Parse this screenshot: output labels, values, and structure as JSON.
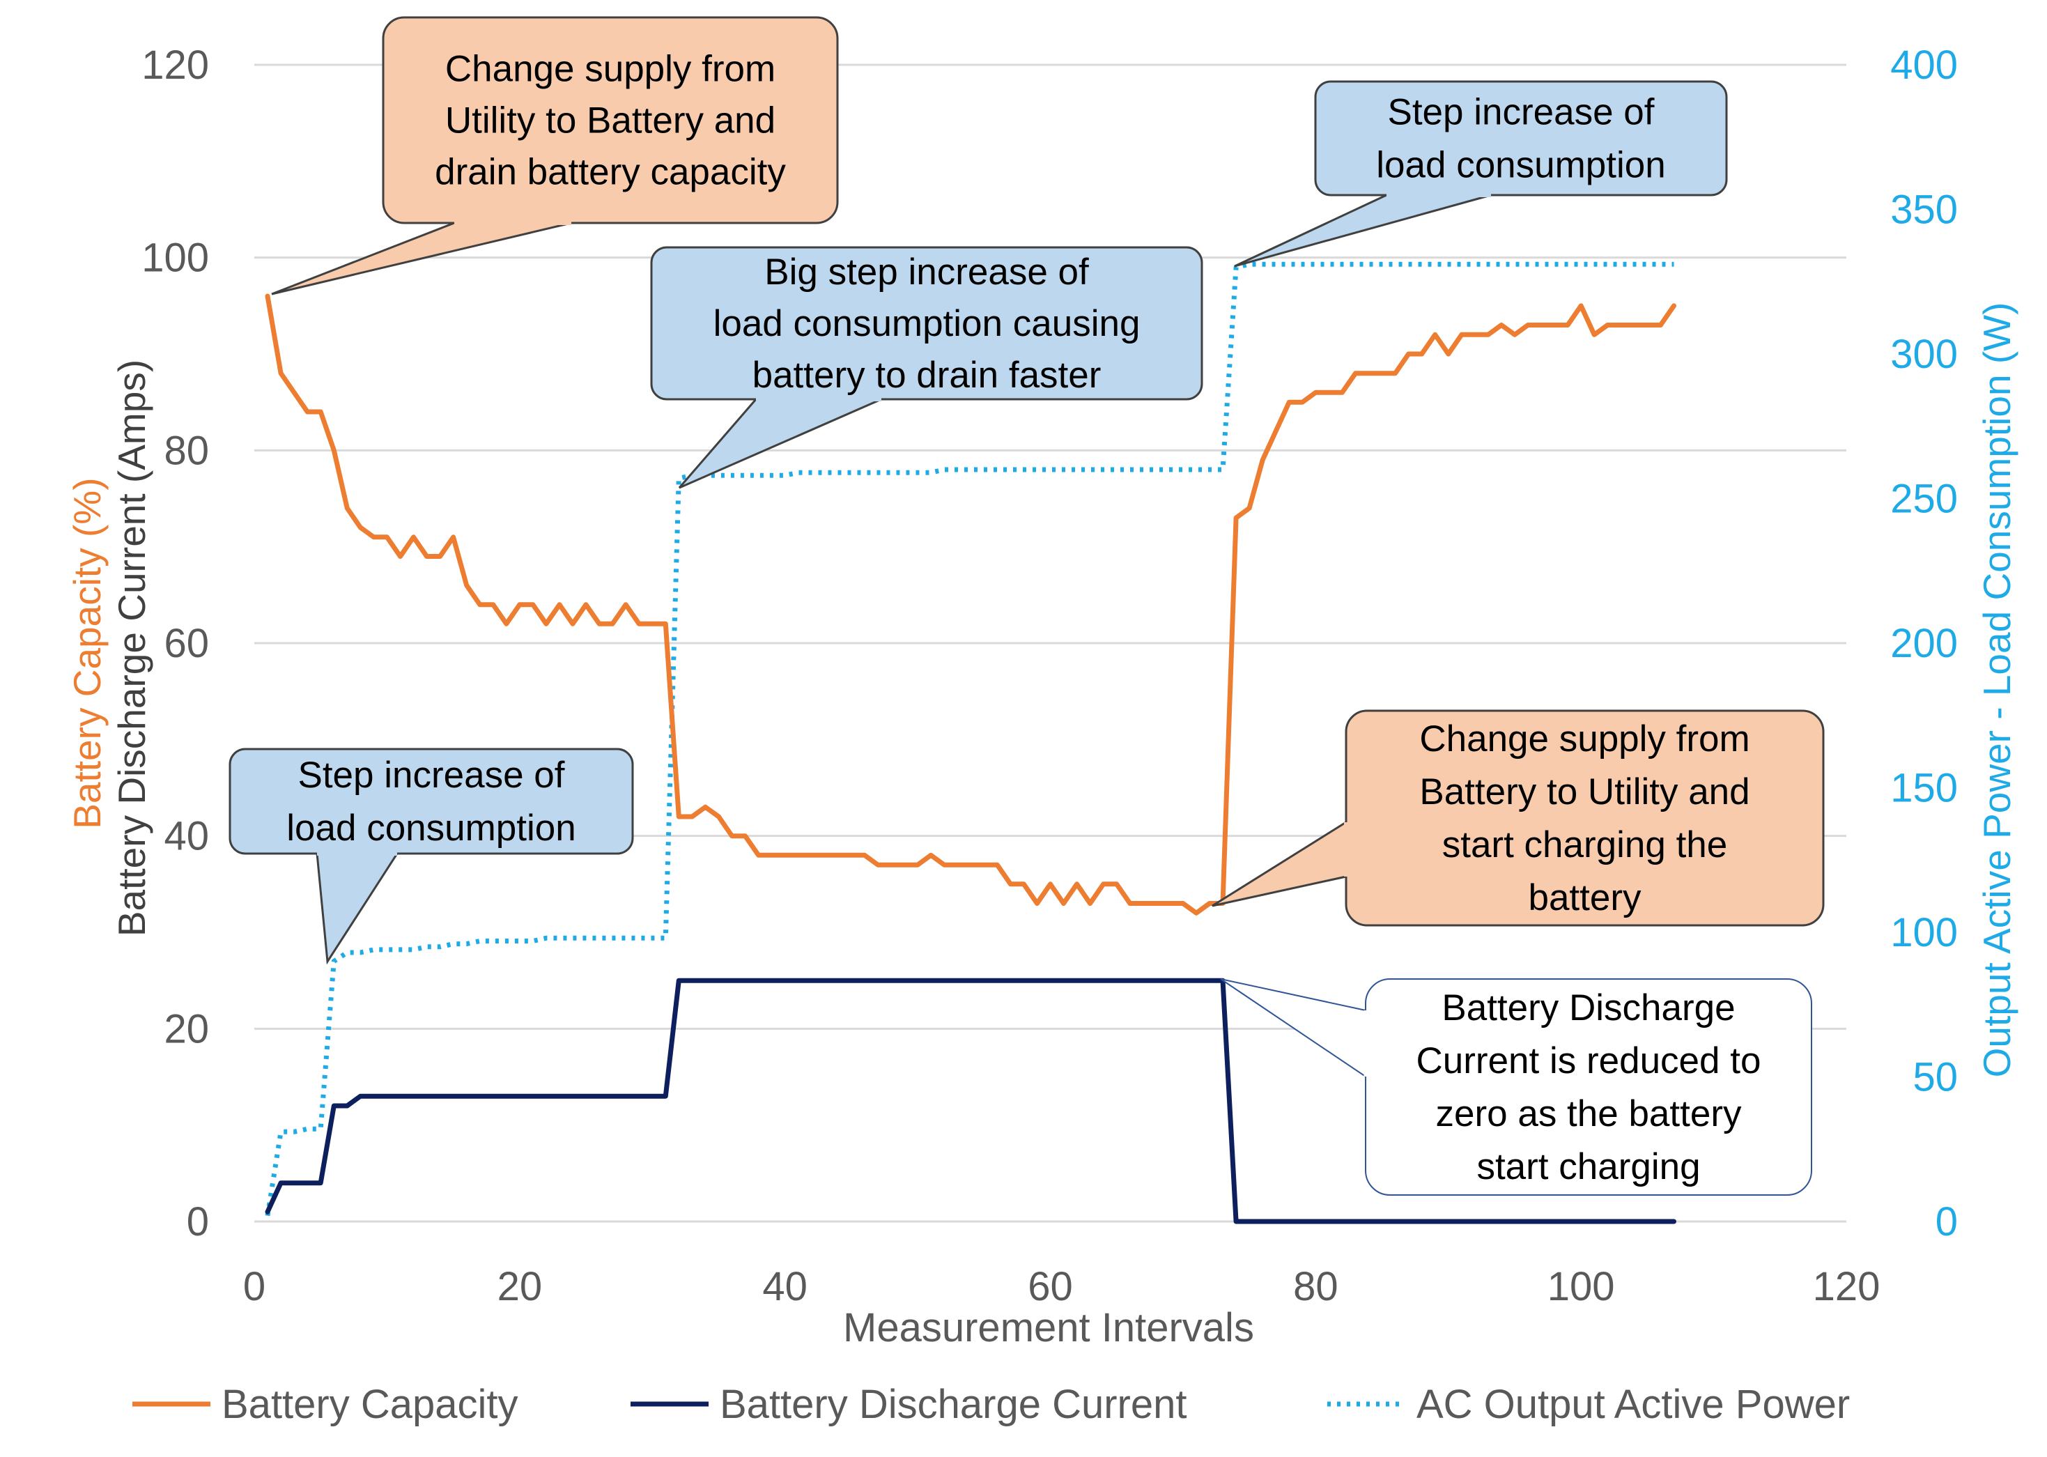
{
  "chart_data": {
    "type": "line",
    "xlabel": "Measurement Intervals",
    "ylabel_left_parts": [
      "Battery Capacity (%)",
      "Battery Discharge Current (Amps)"
    ],
    "ylabel_right": "Output Active Power - Load Consumption (W)",
    "xlim": [
      0,
      120
    ],
    "ylim_left": [
      0,
      120
    ],
    "ylim_right": [
      0,
      400
    ],
    "xticks": [
      "0",
      "20",
      "40",
      "60",
      "80",
      "100",
      "120"
    ],
    "yticks_left": [
      "0",
      "20",
      "40",
      "60",
      "80",
      "100",
      "120"
    ],
    "yticks_right": [
      "0",
      "50",
      "100",
      "150",
      "200",
      "250",
      "300",
      "350",
      "400"
    ],
    "grid": true,
    "legend_position": "bottom",
    "colors": {
      "capacity": "#ED7D31",
      "current": "#0D1F5C",
      "power": "#1EAAE7",
      "callout_orange_fill": "#F8CBAD",
      "callout_blue_fill": "#BDD7EE",
      "tick_left": "#595959",
      "tick_right": "#1EAAE7"
    },
    "series": [
      {
        "name": "Battery Capacity",
        "axis": "left",
        "style": "solid",
        "x": [
          1,
          2,
          3,
          4,
          5,
          6,
          7,
          8,
          9,
          10,
          11,
          12,
          13,
          14,
          15,
          16,
          17,
          18,
          19,
          20,
          21,
          22,
          23,
          24,
          25,
          26,
          27,
          28,
          29,
          30,
          31,
          32,
          33,
          34,
          35,
          36,
          37,
          38,
          39,
          40,
          41,
          42,
          43,
          44,
          45,
          46,
          47,
          48,
          49,
          50,
          51,
          52,
          53,
          54,
          55,
          56,
          57,
          58,
          59,
          60,
          61,
          62,
          63,
          64,
          65,
          66,
          67,
          68,
          69,
          70,
          71,
          72,
          73,
          74,
          75,
          76,
          77,
          78,
          79,
          80,
          81,
          82,
          83,
          84,
          85,
          86,
          87,
          88,
          89,
          90,
          91,
          92,
          93,
          94,
          95,
          96,
          97,
          98,
          99,
          100,
          101,
          102,
          103,
          104,
          105,
          106,
          107
        ],
        "values": [
          96,
          88,
          86,
          84,
          84,
          80,
          74,
          72,
          71,
          71,
          69,
          71,
          69,
          69,
          71,
          66,
          64,
          64,
          62,
          64,
          64,
          62,
          64,
          62,
          64,
          62,
          62,
          64,
          62,
          62,
          62,
          42,
          42,
          43,
          42,
          40,
          40,
          38,
          38,
          38,
          38,
          38,
          38,
          38,
          38,
          38,
          37,
          37,
          37,
          37,
          38,
          37,
          37,
          37,
          37,
          37,
          35,
          35,
          33,
          35,
          33,
          35,
          33,
          35,
          35,
          33,
          33,
          33,
          33,
          33,
          32,
          33,
          33,
          73,
          74,
          79,
          82,
          85,
          85,
          86,
          86,
          86,
          88,
          88,
          88,
          88,
          90,
          90,
          92,
          90,
          92,
          92,
          92,
          93,
          92,
          93,
          93,
          93,
          93,
          95,
          92,
          93,
          93,
          93,
          93,
          93,
          95
        ]
      },
      {
        "name": "Battery Discharge Current",
        "axis": "left",
        "style": "solid",
        "x": [
          1,
          2,
          3,
          4,
          5,
          6,
          7,
          8,
          9,
          10,
          11,
          12,
          13,
          14,
          15,
          16,
          17,
          18,
          19,
          20,
          21,
          22,
          23,
          24,
          25,
          26,
          27,
          28,
          29,
          30,
          31,
          32,
          33,
          34,
          35,
          36,
          37,
          38,
          39,
          40,
          41,
          42,
          43,
          44,
          45,
          46,
          47,
          48,
          49,
          50,
          51,
          52,
          53,
          54,
          55,
          56,
          57,
          58,
          59,
          60,
          61,
          62,
          63,
          64,
          65,
          66,
          67,
          68,
          69,
          70,
          71,
          72,
          73,
          74,
          75,
          76,
          77,
          78,
          79,
          80,
          81,
          82,
          83,
          84,
          85,
          86,
          87,
          88,
          89,
          90,
          91,
          92,
          93,
          94,
          95,
          96,
          97,
          98,
          99,
          100,
          101,
          102,
          103,
          104,
          105,
          106,
          107
        ],
        "values": [
          1,
          4,
          4,
          4,
          4,
          12,
          12,
          13,
          13,
          13,
          13,
          13,
          13,
          13,
          13,
          13,
          13,
          13,
          13,
          13,
          13,
          13,
          13,
          13,
          13,
          13,
          13,
          13,
          13,
          13,
          13,
          25,
          25,
          25,
          25,
          25,
          25,
          25,
          25,
          25,
          25,
          25,
          25,
          25,
          25,
          25,
          25,
          25,
          25,
          25,
          25,
          25,
          25,
          25,
          25,
          25,
          25,
          25,
          25,
          25,
          25,
          25,
          25,
          25,
          25,
          25,
          25,
          25,
          25,
          25,
          25,
          25,
          25,
          0,
          0,
          0,
          0,
          0,
          0,
          0,
          0,
          0,
          0,
          0,
          0,
          0,
          0,
          0,
          0,
          0,
          0,
          0,
          0,
          0,
          0,
          0,
          0,
          0,
          0,
          0,
          0,
          0,
          0,
          0,
          0,
          0,
          0
        ]
      },
      {
        "name": "AC Output Active Power",
        "axis": "right",
        "style": "dotted",
        "x": [
          1,
          2,
          3,
          4,
          5,
          6,
          7,
          8,
          9,
          10,
          11,
          12,
          13,
          14,
          15,
          16,
          17,
          18,
          19,
          20,
          21,
          22,
          23,
          24,
          25,
          26,
          27,
          28,
          29,
          30,
          31,
          32,
          33,
          34,
          35,
          36,
          37,
          38,
          39,
          40,
          41,
          42,
          43,
          44,
          45,
          46,
          47,
          48,
          49,
          50,
          51,
          52,
          53,
          54,
          55,
          56,
          57,
          58,
          59,
          60,
          61,
          62,
          63,
          64,
          65,
          66,
          67,
          68,
          69,
          70,
          71,
          72,
          73,
          74,
          75,
          76,
          77,
          78,
          79,
          80,
          81,
          82,
          83,
          84,
          85,
          86,
          87,
          88,
          89,
          90,
          91,
          92,
          93,
          94,
          95,
          96,
          97,
          98,
          99,
          100,
          101,
          102,
          103,
          104,
          105,
          106,
          107
        ],
        "values": [
          2,
          31,
          31,
          32,
          32,
          90,
          93,
          93,
          94,
          94,
          94,
          94,
          95,
          95,
          96,
          96,
          97,
          97,
          97,
          97,
          97,
          98,
          98,
          98,
          98,
          98,
          98,
          98,
          98,
          98,
          98,
          257,
          258,
          258,
          258,
          258,
          258,
          258,
          258,
          258,
          259,
          259,
          259,
          259,
          259,
          259,
          259,
          259,
          259,
          259,
          259,
          260,
          260,
          260,
          260,
          260,
          260,
          260,
          260,
          260,
          260,
          260,
          260,
          260,
          260,
          260,
          260,
          260,
          260,
          260,
          260,
          260,
          260,
          330,
          331,
          331,
          331,
          331,
          331,
          331,
          331,
          331,
          331,
          331,
          331,
          331,
          331,
          331,
          331,
          331,
          331,
          331,
          331,
          331,
          331,
          331,
          331,
          331,
          331,
          331,
          331,
          331,
          331,
          331,
          331,
          331,
          331
        ]
      }
    ],
    "annotations": [
      {
        "id": "ann-utility-to-battery",
        "style": "orange",
        "lines": [
          "Change supply from",
          "Utility to Battery and",
          "drain battery capacity"
        ],
        "points_to": {
          "x": 1,
          "y": 96,
          "axis": "left"
        }
      },
      {
        "id": "ann-step-increase-top",
        "style": "blue",
        "lines": [
          "Step increase of",
          "load consumption"
        ],
        "points_to": {
          "x": 74,
          "y": 330,
          "axis": "right"
        }
      },
      {
        "id": "ann-big-step",
        "style": "blue",
        "lines": [
          "Big step increase of",
          "load consumption causing",
          "battery to drain faster"
        ],
        "points_to": {
          "x": 32,
          "y": 255,
          "axis": "right"
        }
      },
      {
        "id": "ann-step-increase-left",
        "style": "blue",
        "lines": [
          "Step increase of",
          "load consumption"
        ],
        "points_to": {
          "x": 6,
          "y": 90,
          "axis": "right"
        }
      },
      {
        "id": "ann-battery-to-utility",
        "style": "orange",
        "lines": [
          "Change supply from",
          "Battery to Utility and",
          "start charging the",
          "battery"
        ],
        "points_to": {
          "x": 73,
          "y": 33,
          "axis": "left"
        }
      },
      {
        "id": "ann-discharge-reduced",
        "style": "white",
        "lines": [
          "Battery Discharge",
          "Current is reduced to",
          "zero as the battery",
          "start charging"
        ],
        "points_to": {
          "x": 73,
          "y": 25,
          "axis": "left"
        }
      }
    ]
  }
}
